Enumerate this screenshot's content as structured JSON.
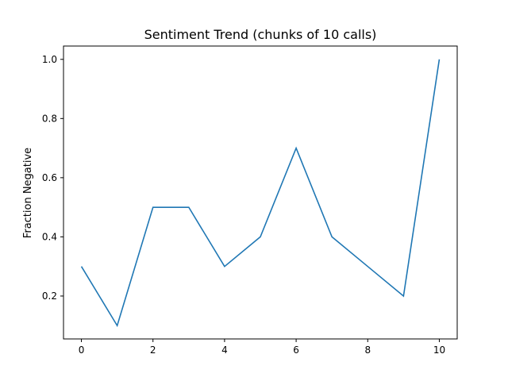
{
  "chart_data": {
    "type": "line",
    "title": "Sentiment Trend (chunks of 10 calls)",
    "xlabel": "",
    "ylabel": "Fraction Negative",
    "x": [
      0,
      1,
      2,
      3,
      4,
      5,
      6,
      7,
      8,
      9,
      10
    ],
    "series": [
      {
        "values": [
          0.3,
          0.1,
          0.5,
          0.5,
          0.3,
          0.4,
          0.7,
          0.4,
          0.3,
          0.2,
          1.0
        ],
        "color": "#1f77b4"
      }
    ],
    "xlim": [
      -0.5,
      10.5
    ],
    "ylim": [
      0.055,
      1.045
    ],
    "xticks": [
      "0",
      "2",
      "4",
      "6",
      "8",
      "10"
    ],
    "yticks": [
      "0.2",
      "0.4",
      "0.6",
      "0.8",
      "1.0"
    ],
    "grid": false,
    "legend": "none"
  }
}
